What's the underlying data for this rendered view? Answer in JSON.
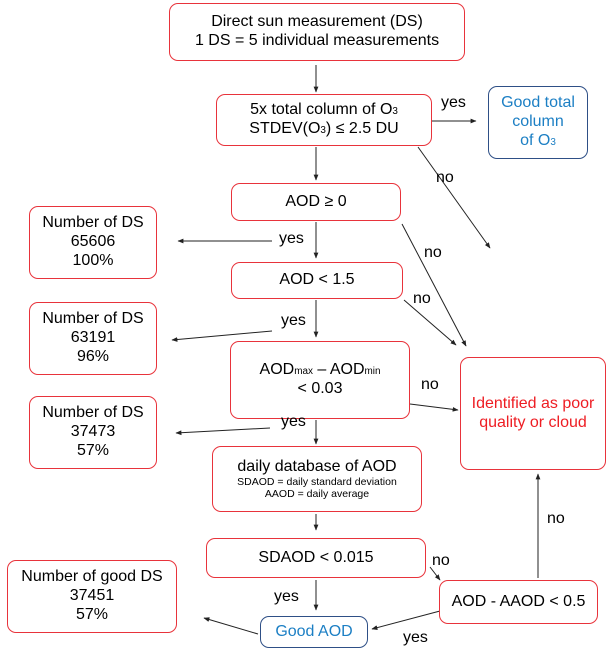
{
  "boxes": {
    "direct_sun": {
      "line1": "Direct sun measurement (DS)",
      "line2": "1 DS = 5 individual measurements"
    },
    "total_column": {
      "line1_prefix": "5x total column of O",
      "line1_sub": "3",
      "line2_prefix": "STDEV(O",
      "line2_sub": "3",
      "line2_suffix": ") ≤ 2.5 DU"
    },
    "good_total_column": {
      "line1": "Good total",
      "line2": "column",
      "line3_prefix": "of O",
      "line3_sub": "3"
    },
    "aod_ge_0": {
      "text": "AOD ≥ 0"
    },
    "aod_lt_15": {
      "text": "AOD < 1.5"
    },
    "aod_range": {
      "aod1": "AOD",
      "sub1": "max",
      "dash": " – AOD",
      "sub2": "min",
      "line2": "< 0.03"
    },
    "daily_db": {
      "line1": "daily database of AOD",
      "line2": "SDAOD = daily standard deviation",
      "line3": "AAOD = daily average"
    },
    "sdaod": {
      "text": "SDAOD < 0.015"
    },
    "aod_aaod": {
      "text": "AOD - AAOD < 0.5"
    },
    "good_aod": {
      "text": "Good AOD"
    },
    "poor_quality": {
      "line1": "Identified as poor",
      "line2": "quality or cloud"
    },
    "count1": {
      "line1": "Number of DS",
      "line2": "65606",
      "line3": "100%"
    },
    "count2": {
      "line1": "Number of DS",
      "line2": "63191",
      "line3": "96%"
    },
    "count3": {
      "line1": "Number of DS",
      "line2": "37473",
      "line3": "57%"
    },
    "count4": {
      "line1": "Number of good DS",
      "line2": "37451",
      "line3": "57%"
    }
  },
  "labels": {
    "yes": "yes",
    "no": "no"
  },
  "colors": {
    "box_border": "#e8333b",
    "blue_border": "#2e4f86",
    "red_text": "#ee1d23",
    "blue_text": "#1c7fc4"
  }
}
